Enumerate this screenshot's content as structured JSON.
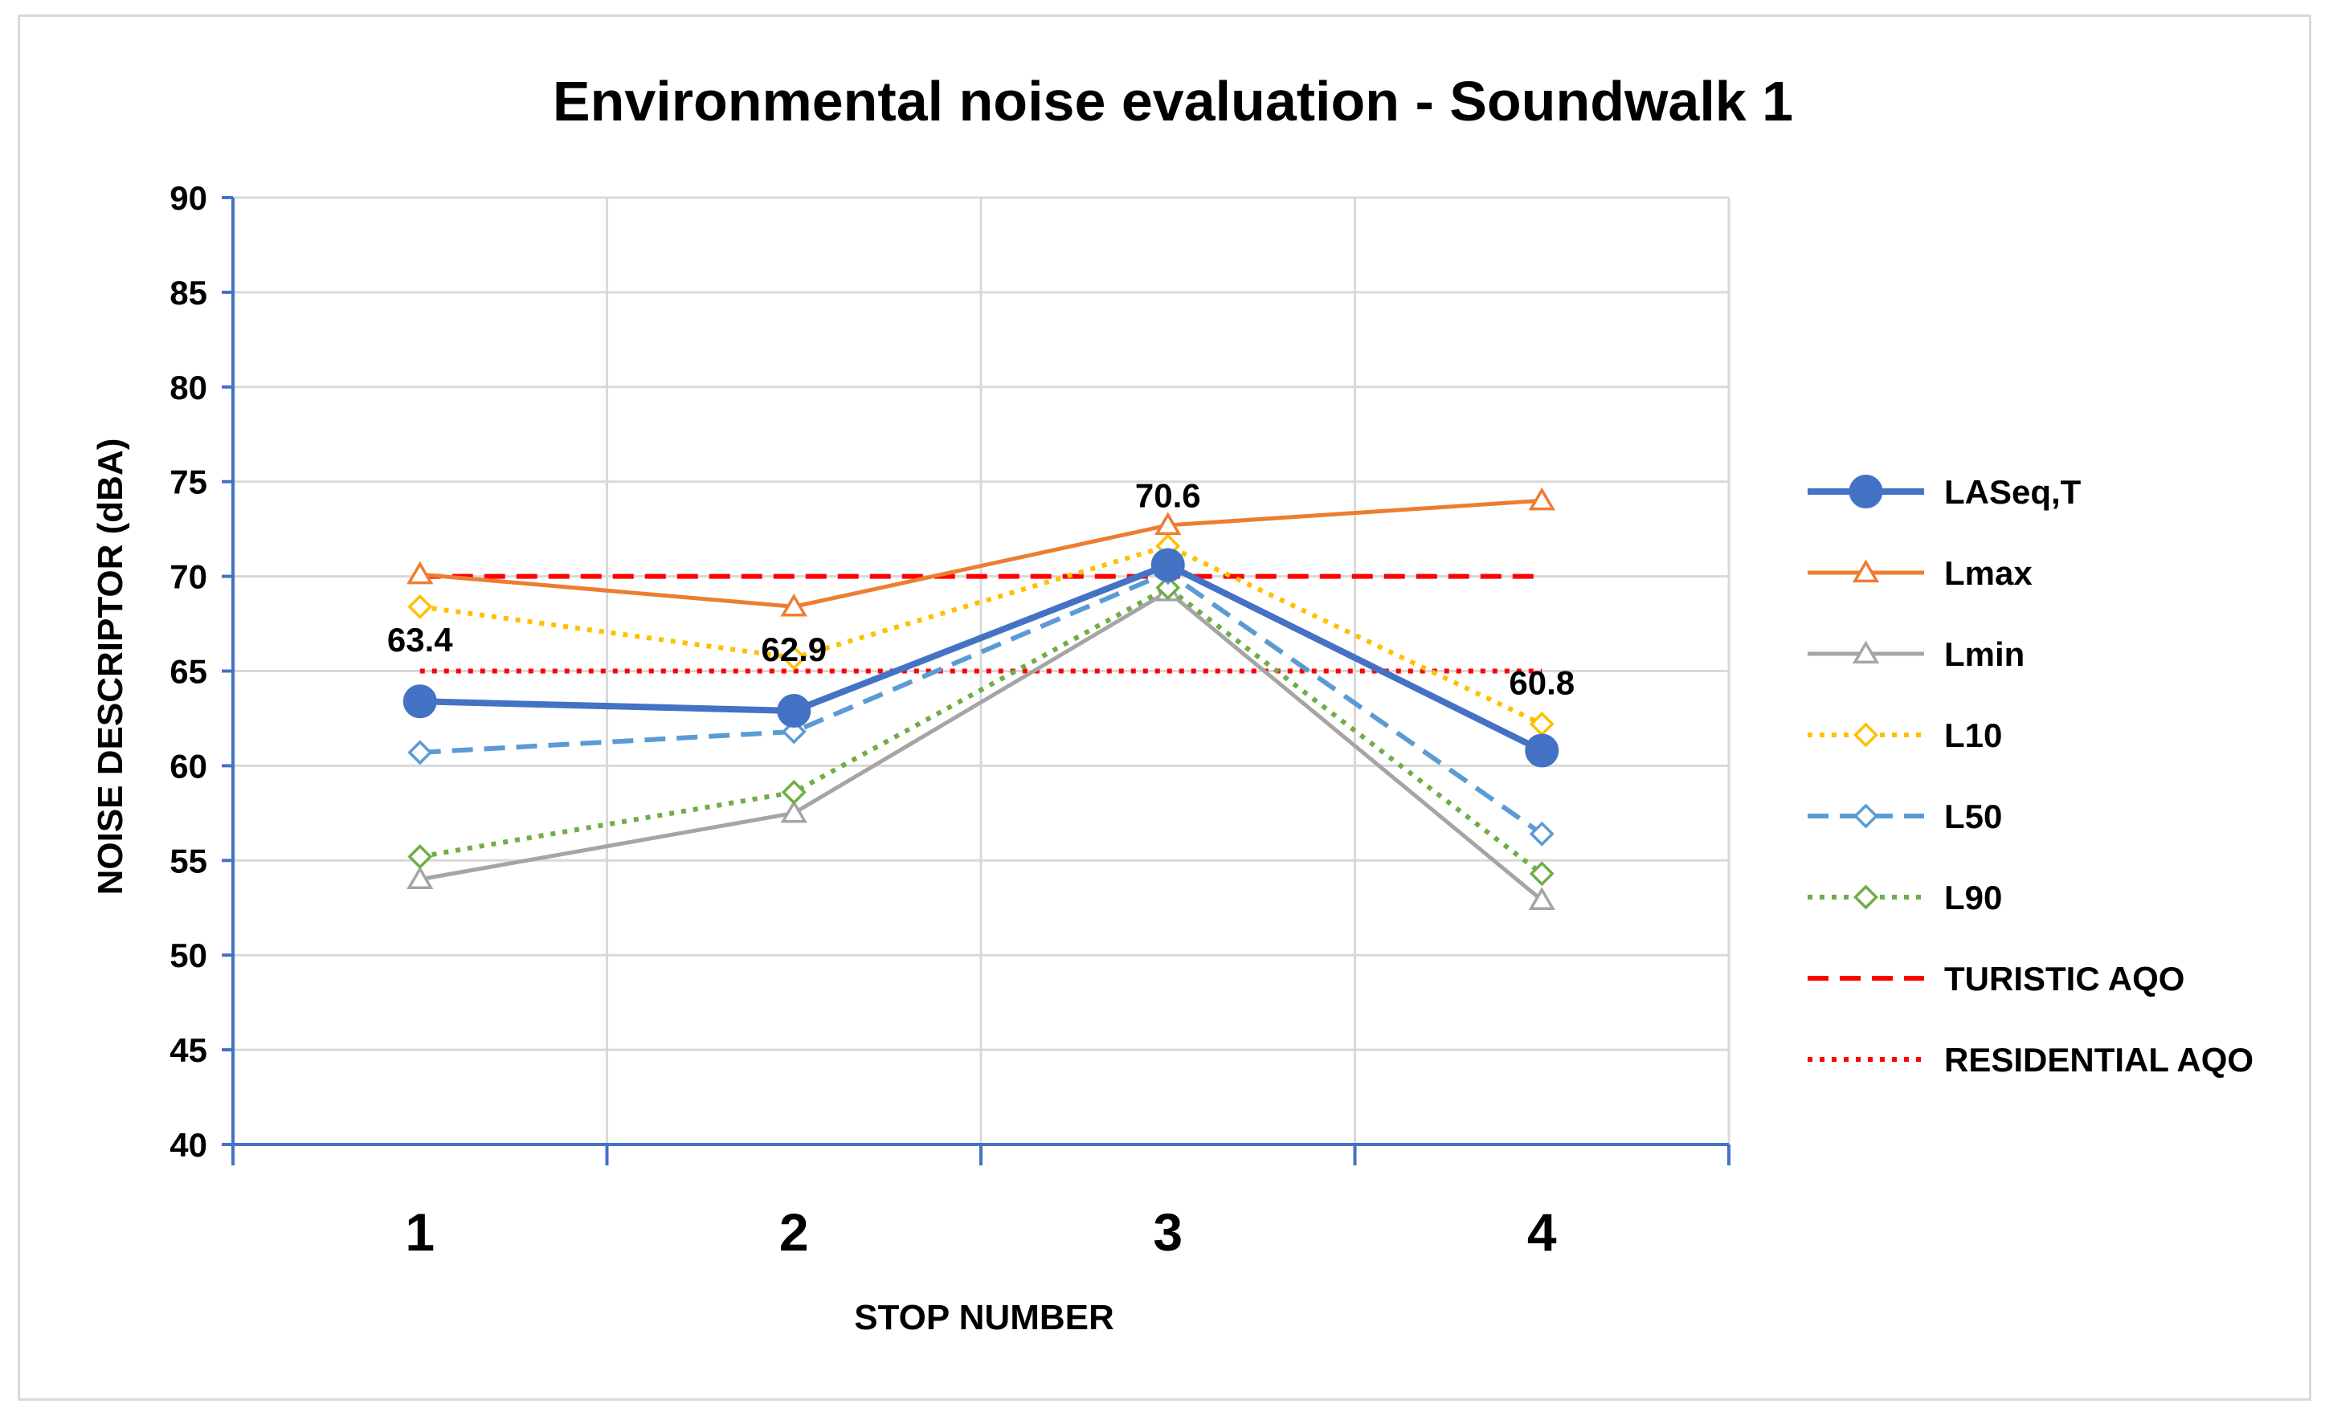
{
  "chart_data": {
    "type": "line",
    "title": "Environmental noise evaluation - Soundwalk 1",
    "xlabel": "STOP NUMBER",
    "ylabel": "NOISE DESCRIPTOR (dBA)",
    "categories": [
      "1",
      "2",
      "3",
      "4"
    ],
    "ylim": [
      40,
      90
    ],
    "yticks": [
      40,
      45,
      50,
      55,
      60,
      65,
      70,
      75,
      80,
      85,
      90
    ],
    "grid": true,
    "legend_position": "right",
    "series": [
      {
        "name": "LASeq,T",
        "values": [
          63.4,
          62.9,
          70.6,
          60.8
        ],
        "color": "#4472C4",
        "dash": "solid",
        "marker": "circle",
        "data_labels": [
          "63.4",
          "62.9",
          "70.6",
          "60.8"
        ]
      },
      {
        "name": "Lmax",
        "values": [
          70.1,
          68.4,
          72.7,
          74.0
        ],
        "color": "#ED7D31",
        "dash": "solid",
        "marker": "triangle"
      },
      {
        "name": "Lmin",
        "values": [
          54.0,
          57.5,
          69.2,
          52.9
        ],
        "color": "#A5A5A5",
        "dash": "solid",
        "marker": "triangle"
      },
      {
        "name": "L10",
        "values": [
          68.4,
          65.7,
          71.6,
          62.2
        ],
        "color": "#FFC000",
        "dash": "dotted",
        "marker": "diamond"
      },
      {
        "name": "L50",
        "values": [
          60.7,
          61.8,
          70.2,
          56.4
        ],
        "color": "#5B9BD5",
        "dash": "dashed",
        "marker": "diamond"
      },
      {
        "name": "L90",
        "values": [
          55.2,
          58.6,
          69.4,
          54.3
        ],
        "color": "#70AD47",
        "dash": "dotted",
        "marker": "diamond"
      },
      {
        "name": "TURISTIC AQO",
        "values": [
          70,
          70,
          70,
          70
        ],
        "color": "#FF0000",
        "dash": "dashed",
        "marker": "none"
      },
      {
        "name": "RESIDENTIAL AQO",
        "values": [
          65,
          65,
          65,
          65
        ],
        "color": "#FF0000",
        "dash": "dotted",
        "marker": "none"
      }
    ]
  }
}
